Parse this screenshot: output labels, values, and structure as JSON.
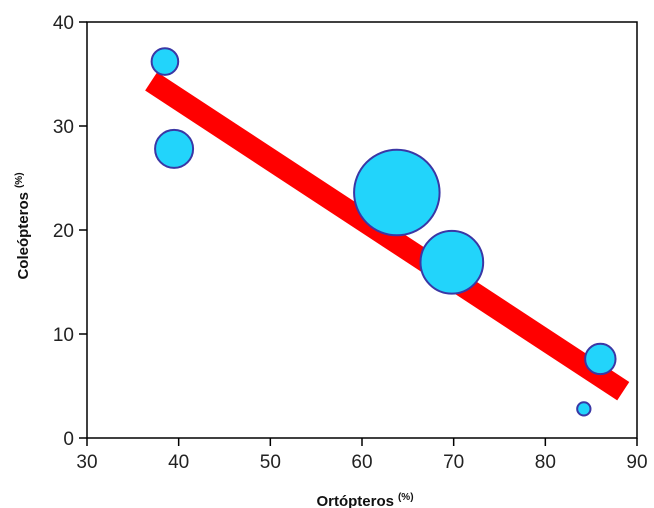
{
  "chart_data": {
    "type": "scatter",
    "variant": "bubble",
    "xlabel": "Ortópteros",
    "xlabel_unit": "(%)",
    "ylabel": "Coleópteros",
    "ylabel_unit": "(%)",
    "xlim": [
      30,
      90
    ],
    "ylim": [
      0,
      40
    ],
    "x_ticks": [
      30,
      40,
      50,
      60,
      70,
      80,
      90
    ],
    "y_ticks": [
      0,
      10,
      20,
      30,
      40
    ],
    "grid": false,
    "points": [
      {
        "x": 38.5,
        "y": 36.2,
        "size": 1.4
      },
      {
        "x": 39.5,
        "y": 27.8,
        "size": 2.0
      },
      {
        "x": 63.8,
        "y": 23.6,
        "size": 4.5
      },
      {
        "x": 69.8,
        "y": 16.9,
        "size": 3.3
      },
      {
        "x": 86.0,
        "y": 7.6,
        "size": 1.6
      },
      {
        "x": 84.2,
        "y": 2.8,
        "size": 0.7
      }
    ],
    "trend_line": {
      "x": [
        37,
        88.5
      ],
      "y": [
        34.3,
        4.5
      ]
    },
    "colors": {
      "point_fill": "#22d4fb",
      "point_stroke": "#3a37a5",
      "trend_line": "#ff0000",
      "axis": "#000000"
    }
  }
}
